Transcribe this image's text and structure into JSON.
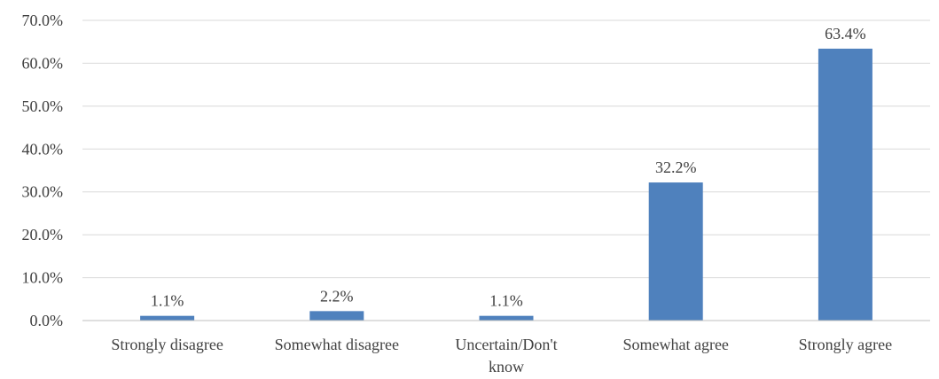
{
  "chart_data": {
    "type": "bar",
    "categories": [
      "Strongly disagree",
      "Somewhat disagree",
      "Uncertain/Don't know",
      "Somewhat agree",
      "Strongly agree"
    ],
    "category_lines": [
      [
        "Strongly disagree"
      ],
      [
        "Somewhat disagree"
      ],
      [
        "Uncertain/Don't",
        "know"
      ],
      [
        "Somewhat agree"
      ],
      [
        "Strongly agree"
      ]
    ],
    "values": [
      1.1,
      2.2,
      1.1,
      32.2,
      63.4
    ],
    "data_labels": [
      "1.1%",
      "2.2%",
      "1.1%",
      "32.2%",
      "63.4%"
    ],
    "y_ticks": [
      0,
      10,
      20,
      30,
      40,
      50,
      60,
      70
    ],
    "y_tick_labels": [
      "0.0%",
      "10.0%",
      "20.0%",
      "30.0%",
      "40.0%",
      "50.0%",
      "60.0%",
      "70.0%"
    ],
    "ylim": [
      0,
      70
    ],
    "title": "",
    "xlabel": "",
    "ylabel": "",
    "grid": true,
    "legend": "none",
    "bar_color": "#4f81bd"
  }
}
